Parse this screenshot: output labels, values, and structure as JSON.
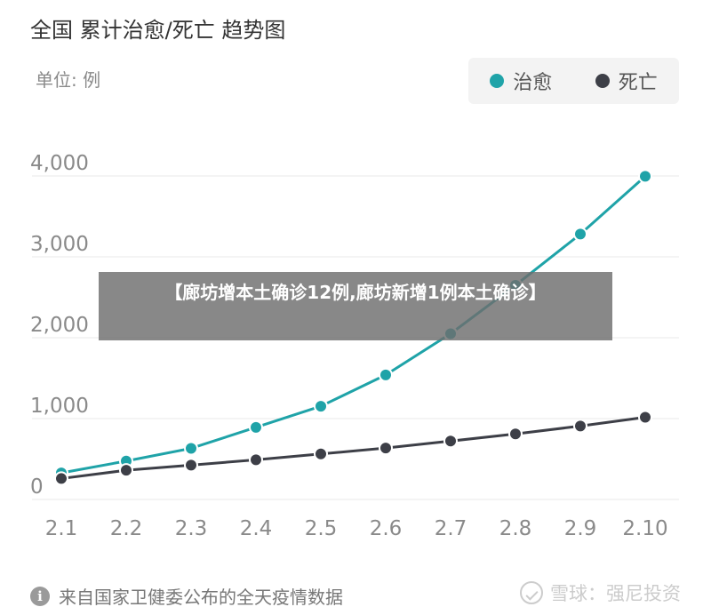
{
  "chart_data": {
    "type": "line",
    "title": "全国 累计治愈/死亡 趋势图",
    "unit_label": "单位: 例",
    "categories": [
      "2.1",
      "2.2",
      "2.3",
      "2.4",
      "2.5",
      "2.6",
      "2.7",
      "2.8",
      "2.9",
      "2.10"
    ],
    "y_ticks": [
      "0",
      "1,000",
      "2,000",
      "3,000",
      "4,000"
    ],
    "ylim": [
      0,
      4000
    ],
    "grid": true,
    "legend_position": "top-right",
    "series": [
      {
        "name": "治愈",
        "color": "#1fa3a8",
        "values": [
          328,
          475,
          632,
          892,
          1153,
          1540,
          2050,
          2649,
          3281,
          3996
        ]
      },
      {
        "name": "死亡",
        "color": "#3d3f47",
        "values": [
          259,
          361,
          425,
          490,
          563,
          636,
          722,
          811,
          908,
          1016
        ]
      }
    ]
  },
  "overlay": {
    "headline": "【廊坊增本土确诊12例,廊坊新增1例本土确诊】"
  },
  "footer": {
    "icon": "info-icon",
    "source": "来自国家卫健委公布的全天疫情数据"
  },
  "watermark": {
    "icon": "check-circle-icon",
    "text": "雪球：强尼投资"
  }
}
